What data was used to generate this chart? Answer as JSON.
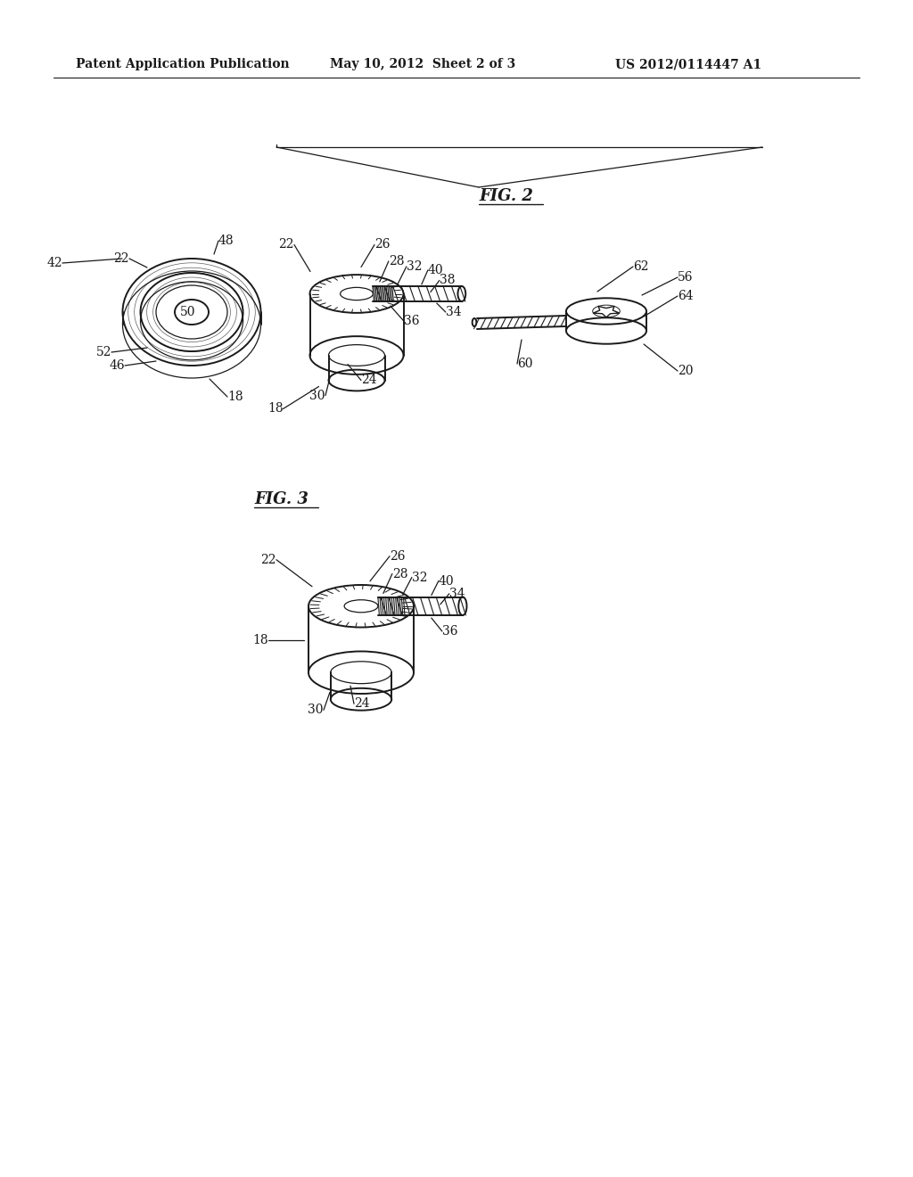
{
  "bg_color": "#ffffff",
  "line_color": "#1a1a1a",
  "header_left": "Patent Application Publication",
  "header_center": "May 10, 2012  Sheet 2 of 3",
  "header_right": "US 2012/0114447 A1",
  "fig2_label": "FIG. 2",
  "fig3_label": "FIG. 3",
  "font_size_header": 10,
  "font_size_fig": 13,
  "font_size_label": 10
}
